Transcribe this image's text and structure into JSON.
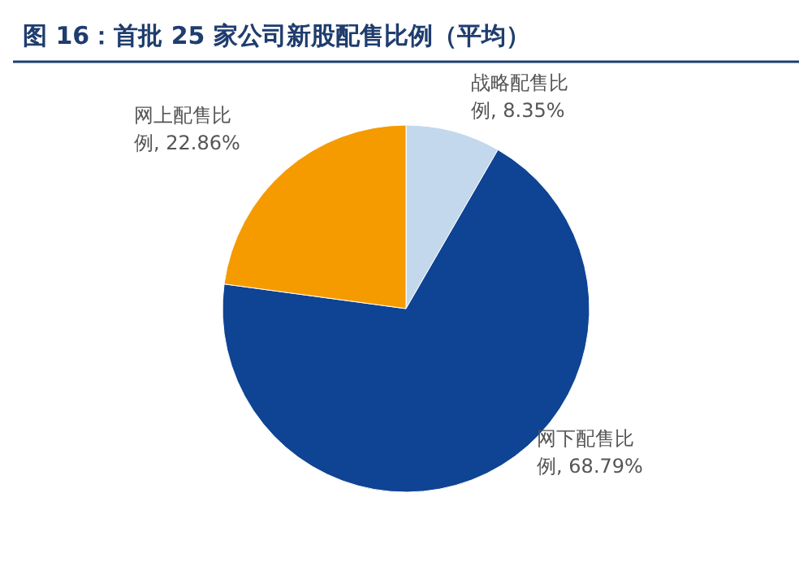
{
  "chart_data": {
    "type": "pie",
    "title": "图 16：首批 25 家公司新股配售比例（平均）",
    "categories": [
      "战略配售比例",
      "网下配售比例",
      "网上配售比例"
    ],
    "values": [
      8.35,
      68.79,
      22.86
    ],
    "value_labels": [
      "8.35%",
      "68.79%",
      "22.86%"
    ],
    "colors": [
      "#c3d8ec",
      "#0f4393",
      "#f59b00"
    ]
  }
}
